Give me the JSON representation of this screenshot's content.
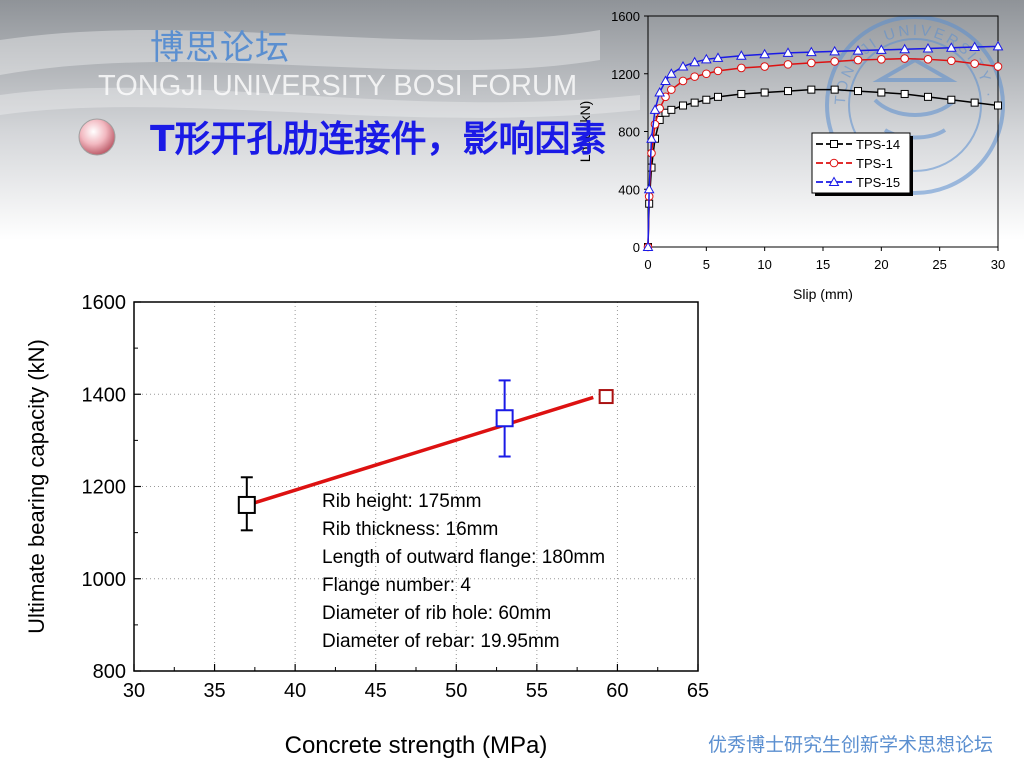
{
  "header": {
    "forum_name": "博思论坛",
    "forum_name_en": "TONGJI UNIVERSITY BOSI FORUM",
    "slide_title": "T形开孔肋连接件，影响因素",
    "seal_text": "TONGJI UNIVERSITY · FORUM"
  },
  "footer": {
    "slogan": "优秀博士研究生创新学术思想论坛"
  },
  "colors": {
    "title": "#1a1ae6",
    "forum": "#5b8fd0",
    "fit_line": "#dd1111",
    "blue_point": "#1a1ae6",
    "red_point": "#aa1111"
  },
  "chart_data": [
    {
      "type": "scatter",
      "xlabel": "Concrete strength (MPa)",
      "ylabel": "Ultimate bearing capacity (kN)",
      "xlim": [
        30,
        65
      ],
      "ylim": [
        800,
        1600
      ],
      "xticks": [
        30,
        35,
        40,
        45,
        50,
        55,
        60,
        65
      ],
      "yticks": [
        800,
        1000,
        1200,
        1400,
        1600
      ],
      "grid": true,
      "points": [
        {
          "x": 37,
          "y": 1160,
          "err_low": 1105,
          "err_high": 1220,
          "color": "#000000"
        },
        {
          "x": 53,
          "y": 1348,
          "err_low": 1265,
          "err_high": 1430,
          "color": "#1a1ae6"
        },
        {
          "x": 59.3,
          "y": 1395,
          "err_low": 1385,
          "err_high": 1405,
          "color": "#aa1111"
        }
      ],
      "fit_line": {
        "x": [
          37.5,
          58.5
        ],
        "y": [
          1165,
          1393
        ],
        "color": "#dd1111"
      },
      "annotations": [
        "Rib height: 175mm",
        "Rib thickness: 16mm",
        "Length of outward flange: 180mm",
        "Flange number: 4",
        "Diameter of rib hole: 60mm",
        "Diameter of rebar: 19.95mm"
      ]
    },
    {
      "type": "line",
      "xlabel": "Slip (mm)",
      "ylabel": "Load (kN)",
      "xlim": [
        0,
        30
      ],
      "ylim": [
        0,
        1600
      ],
      "xticks": [
        0,
        5,
        10,
        15,
        20,
        25,
        30
      ],
      "yticks": [
        0,
        400,
        800,
        1200,
        1600
      ],
      "legend": "right",
      "series": [
        {
          "name": "TPS-14",
          "color": "#000000",
          "marker": "square",
          "x": [
            0,
            0.1,
            0.3,
            0.6,
            1,
            1.5,
            2,
            3,
            4,
            5,
            6,
            8,
            10,
            12,
            14,
            16,
            18,
            20,
            22,
            24,
            26,
            28,
            30
          ],
          "y": [
            0,
            300,
            550,
            750,
            880,
            930,
            950,
            980,
            1000,
            1020,
            1040,
            1060,
            1070,
            1080,
            1090,
            1090,
            1080,
            1070,
            1060,
            1040,
            1020,
            1000,
            980
          ]
        },
        {
          "name": "TPS-1",
          "color": "#dd1111",
          "marker": "circle",
          "x": [
            0,
            0.1,
            0.3,
            0.6,
            1,
            1.5,
            2,
            3,
            4,
            5,
            6,
            8,
            10,
            12,
            14,
            16,
            18,
            20,
            22,
            24,
            26,
            28,
            30
          ],
          "y": [
            0,
            350,
            650,
            850,
            960,
            1040,
            1090,
            1150,
            1180,
            1200,
            1220,
            1240,
            1250,
            1265,
            1275,
            1285,
            1295,
            1300,
            1305,
            1300,
            1290,
            1270,
            1250
          ]
        },
        {
          "name": "TPS-15",
          "color": "#1a1ae6",
          "marker": "triangle",
          "x": [
            0,
            0.1,
            0.3,
            0.6,
            1,
            1.5,
            2,
            3,
            4,
            5,
            6,
            8,
            10,
            12,
            14,
            16,
            18,
            20,
            22,
            24,
            26,
            28,
            30
          ],
          "y": [
            0,
            400,
            750,
            950,
            1070,
            1150,
            1200,
            1250,
            1280,
            1300,
            1310,
            1325,
            1335,
            1345,
            1350,
            1355,
            1360,
            1365,
            1370,
            1375,
            1380,
            1385,
            1390
          ]
        }
      ]
    }
  ]
}
